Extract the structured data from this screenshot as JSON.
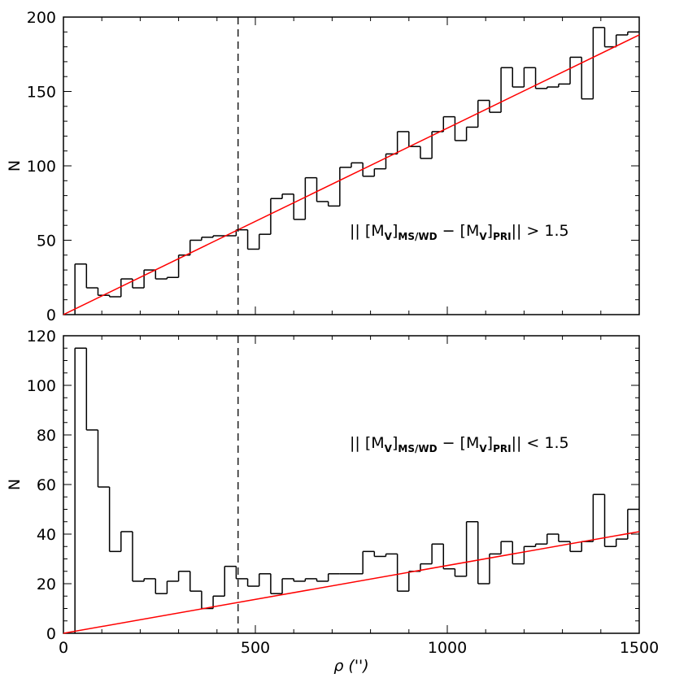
{
  "chart_data": [
    {
      "type": "histogram",
      "ylabel": "N",
      "bins": [
        30,
        60,
        90,
        120,
        150,
        180,
        210,
        240,
        270,
        300,
        330,
        360,
        390,
        420,
        450,
        480,
        510,
        540,
        570,
        600,
        630,
        660,
        690,
        720,
        750,
        780,
        810,
        840,
        870,
        900,
        930,
        960,
        990,
        1020,
        1050,
        1080,
        1110,
        1140,
        1170,
        1200,
        1230,
        1260,
        1290,
        1320,
        1350,
        1380,
        1410,
        1440,
        1470,
        1500
      ],
      "values": [
        34,
        18,
        13,
        12,
        24,
        18,
        30,
        24,
        25,
        40,
        50,
        52,
        53,
        53,
        57,
        44,
        54,
        78,
        81,
        64,
        92,
        76,
        73,
        99,
        102,
        93,
        98,
        108,
        123,
        113,
        105,
        123,
        133,
        117,
        126,
        144,
        136,
        166,
        153,
        166,
        152,
        153,
        155,
        173,
        145,
        193,
        180,
        188,
        190
      ],
      "color": "#000000",
      "fit": {
        "x": [
          0,
          1500
        ],
        "y": [
          0,
          188
        ],
        "color": "#ff0000"
      },
      "vline": 455,
      "annotation": [
        "|| [M",
        "V",
        "]",
        "MS/WD",
        " − [M",
        "V",
        "]",
        "PRI",
        "|| > 1.5"
      ],
      "xlim": [
        0,
        1500
      ],
      "xticks": [
        0,
        500,
        1000,
        1500
      ],
      "xminor": 100,
      "ylim": [
        0,
        200
      ],
      "yticks": [
        0,
        50,
        100,
        150,
        200
      ],
      "yminor": 10
    },
    {
      "type": "histogram",
      "ylabel": "N",
      "xlabel": "ρ ('')",
      "bins": [
        30,
        60,
        90,
        120,
        150,
        180,
        210,
        240,
        270,
        300,
        330,
        360,
        390,
        420,
        450,
        480,
        510,
        540,
        570,
        600,
        630,
        660,
        690,
        720,
        750,
        780,
        810,
        840,
        870,
        900,
        930,
        960,
        990,
        1020,
        1050,
        1080,
        1110,
        1140,
        1170,
        1200,
        1230,
        1260,
        1290,
        1320,
        1350,
        1380,
        1410,
        1440,
        1470,
        1500
      ],
      "values": [
        115,
        82,
        59,
        33,
        41,
        21,
        22,
        16,
        21,
        25,
        17,
        10,
        15,
        27,
        22,
        19,
        24,
        16,
        22,
        21,
        22,
        21,
        24,
        24,
        24,
        33,
        31,
        32,
        17,
        25,
        28,
        36,
        26,
        23,
        45,
        20,
        32,
        37,
        28,
        35,
        36,
        40,
        37,
        33,
        37,
        56,
        35,
        38,
        50
      ],
      "color": "#000000",
      "fit": {
        "x": [
          0,
          1500
        ],
        "y": [
          0,
          41
        ],
        "color": "#ff0000"
      },
      "vline": 455,
      "annotation": [
        "|| [M",
        "V",
        "]",
        "MS/WD",
        " − [M",
        "V",
        "]",
        "PRI",
        "|| < 1.5"
      ],
      "xlim": [
        0,
        1500
      ],
      "xticks": [
        0,
        500,
        1000,
        1500
      ],
      "xminor": 100,
      "ylim": [
        0,
        120
      ],
      "yticks": [
        0,
        20,
        40,
        60,
        80,
        100,
        120
      ],
      "yminor": 5
    }
  ]
}
